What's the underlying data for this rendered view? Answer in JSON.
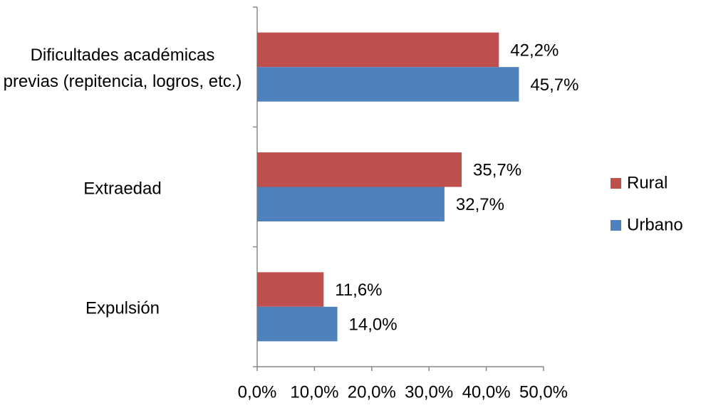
{
  "chart_data": {
    "type": "bar",
    "orientation": "horizontal",
    "categories": [
      "Dificultades académicas previas (repitencia, logros, etc.)",
      "Extraedad",
      "Expulsión"
    ],
    "series": [
      {
        "name": "Rural",
        "color": "#c0504d",
        "values": [
          42.2,
          35.7,
          11.6
        ],
        "value_labels": [
          "42,2%",
          "35,7%",
          "11,6%"
        ]
      },
      {
        "name": "Urbano",
        "color": "#4f81bd",
        "values": [
          45.7,
          32.7,
          14.0
        ],
        "value_labels": [
          "45,7%",
          "32,7%",
          "14,0%"
        ]
      }
    ],
    "xlim": [
      0,
      50
    ],
    "xticks": [
      {
        "value": 0,
        "label": "0,0%"
      },
      {
        "value": 10,
        "label": "10,0%"
      },
      {
        "value": 20,
        "label": "20,0%"
      },
      {
        "value": 30,
        "label": "30,0%"
      },
      {
        "value": 40,
        "label": "40,0%"
      },
      {
        "value": 50,
        "label": "50,0%"
      }
    ],
    "grid": false,
    "legend": "right"
  }
}
